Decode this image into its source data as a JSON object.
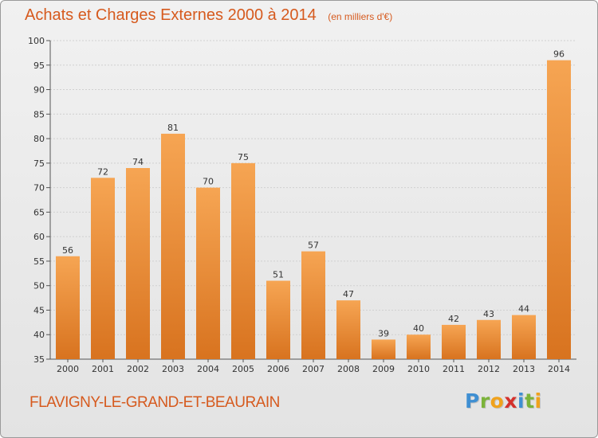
{
  "header": {
    "title": "Achats et Charges Externes 2000 à 2014",
    "subtitle": "(en milliers d'€)"
  },
  "footer": {
    "commune": "FLAVIGNY-LE-GRAND-ET-BEAURAIN",
    "logo": {
      "letters": [
        "P",
        "r",
        "o",
        "x",
        "i",
        "t",
        "i"
      ],
      "colors": [
        "#3f8fd2",
        "#7bb33a",
        "#f0a21c",
        "#d4312c",
        "#3f8fd2",
        "#7bb33a",
        "#f0a21c"
      ]
    }
  },
  "colors": {
    "bar_light": "#f6a553",
    "bar_dark": "#d8731f",
    "accent_text": "#d65a1e",
    "grid": "#d0d0d0"
  },
  "chart_data": {
    "type": "bar",
    "title": "Achats et Charges Externes 2000 à 2014",
    "subtitle": "(en milliers d'€)",
    "categories": [
      "2000",
      "2001",
      "2002",
      "2003",
      "2004",
      "2005",
      "2006",
      "2007",
      "2008",
      "2009",
      "2010",
      "2011",
      "2012",
      "2013",
      "2014"
    ],
    "values": [
      56,
      72,
      74,
      81,
      70,
      75,
      51,
      57,
      47,
      39,
      40,
      42,
      43,
      44,
      96
    ],
    "ylim": [
      35,
      100
    ],
    "yticks": [
      35,
      40,
      45,
      50,
      55,
      60,
      65,
      70,
      75,
      80,
      85,
      90,
      95,
      100
    ],
    "grid": true,
    "data_labels": true
  }
}
